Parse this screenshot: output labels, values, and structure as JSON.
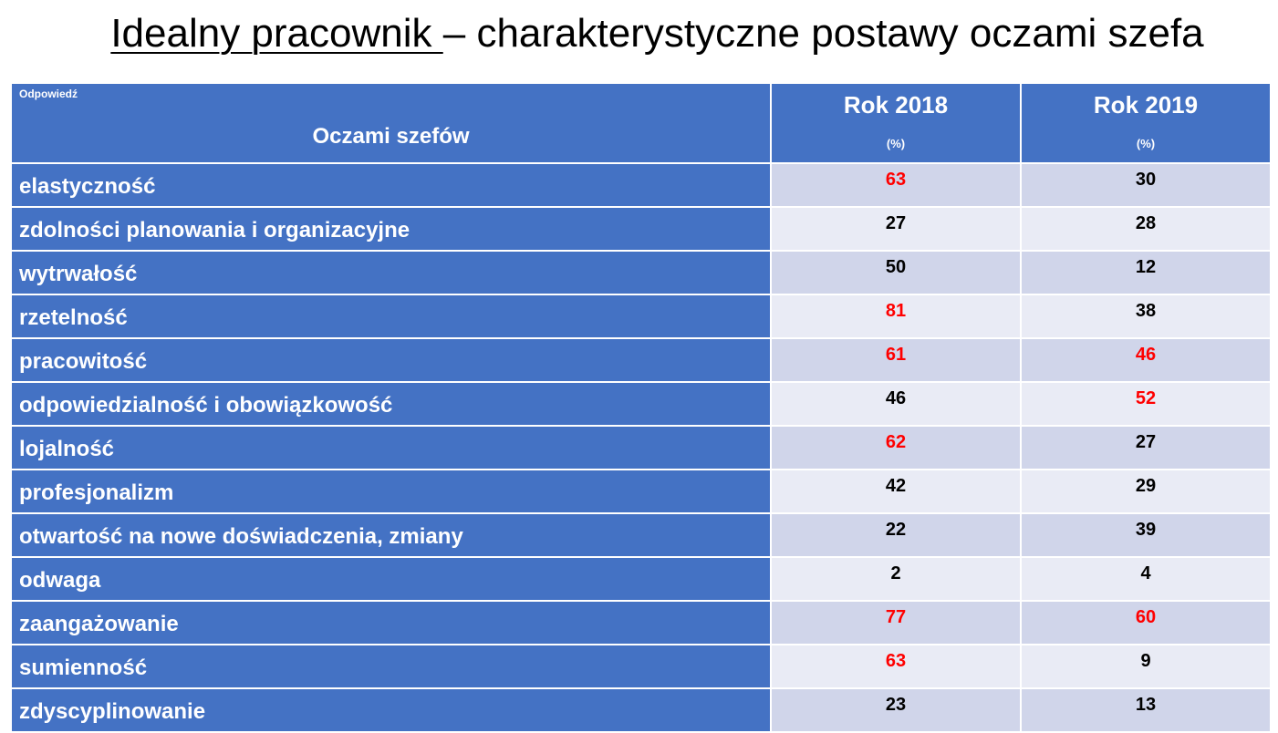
{
  "title": {
    "underlined": "Idealny pracownik ",
    "rest": "– charakterystyczne postawy oczami szefa"
  },
  "header": {
    "small_label": "Odpowiedź",
    "main_label": "Oczami szefów",
    "col2018": "Rok 2018",
    "col2019": "Rok 2019",
    "unit": "(%)"
  },
  "highlight_color": "#ff0000",
  "rows": [
    {
      "label": "elastyczność",
      "v2018": "63",
      "v2019": "30",
      "hl2018": true,
      "hl2019": false
    },
    {
      "label": "zdolności planowania i organizacyjne",
      "v2018": "27",
      "v2019": "28",
      "hl2018": false,
      "hl2019": false
    },
    {
      "label": "wytrwałość",
      "v2018": "50",
      "v2019": "12",
      "hl2018": false,
      "hl2019": false
    },
    {
      "label": "rzetelność",
      "v2018": "81",
      "v2019": "38",
      "hl2018": true,
      "hl2019": false
    },
    {
      "label": "pracowitość",
      "v2018": "61",
      "v2019": "46",
      "hl2018": true,
      "hl2019": true
    },
    {
      "label": "odpowiedzialność i obowiązkowość",
      "v2018": "46",
      "v2019": "52",
      "hl2018": false,
      "hl2019": true
    },
    {
      "label": "lojalność",
      "v2018": "62",
      "v2019": "27",
      "hl2018": true,
      "hl2019": false
    },
    {
      "label": "profesjonalizm",
      "v2018": "42",
      "v2019": "29",
      "hl2018": false,
      "hl2019": false
    },
    {
      "label": "otwartość na nowe doświadczenia, zmiany",
      "v2018": "22",
      "v2019": "39",
      "hl2018": false,
      "hl2019": false
    },
    {
      "label": "odwaga",
      "v2018": "2",
      "v2019": "4",
      "hl2018": false,
      "hl2019": false
    },
    {
      "label": "zaangażowanie",
      "v2018": "77",
      "v2019": "60",
      "hl2018": true,
      "hl2019": true
    },
    {
      "label": "sumienność",
      "v2018": "63",
      "v2019": "9",
      "hl2018": true,
      "hl2019": false
    },
    {
      "label": "zdyscyplinowanie",
      "v2018": "23",
      "v2019": "13",
      "hl2018": false,
      "hl2019": false
    }
  ]
}
